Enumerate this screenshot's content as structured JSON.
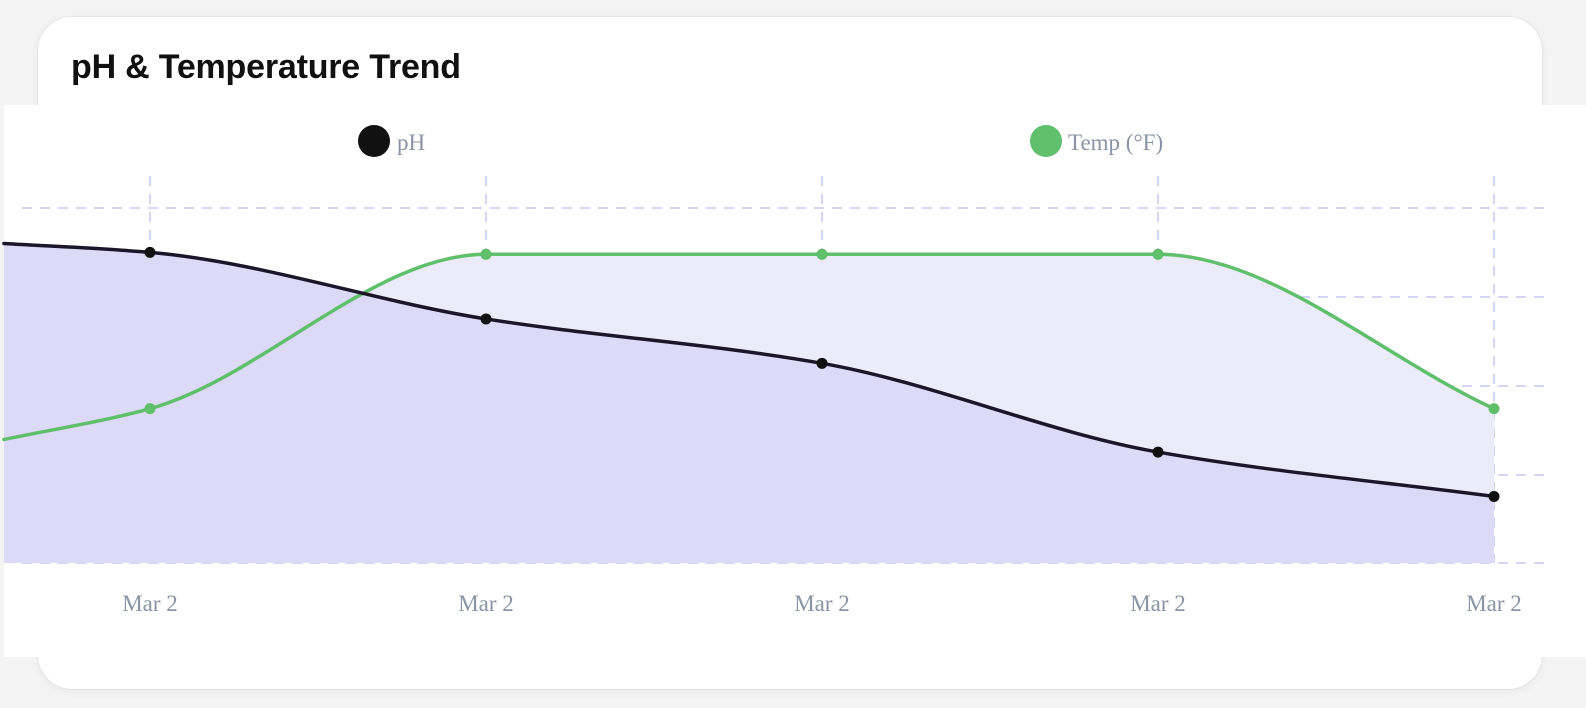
{
  "card": {
    "title": "pH & Temperature Trend"
  },
  "chart_data": {
    "type": "area",
    "title": "pH & Temperature Trend",
    "categories": [
      "Mar 2",
      "Mar 2",
      "Mar 2",
      "Mar 2",
      "Mar 2"
    ],
    "series": [
      {
        "name": "pH",
        "color": "#1b1629",
        "fill": "#dcdaf7",
        "values": [
          7.4,
          7.25,
          7.15,
          6.95,
          6.85
        ],
        "leading_value": 7.42
      },
      {
        "name": "Temp (°F)",
        "color": "#5fbf6b",
        "fill": "#ecebfa",
        "values": [
          77,
          78,
          78,
          78,
          77
        ],
        "leading_value": 76.8
      }
    ],
    "axes": {
      "ph_range": [
        6.7,
        7.5
      ],
      "temp_range": [
        76,
        78.3
      ]
    },
    "grid": true,
    "legend_position": "top-center"
  }
}
